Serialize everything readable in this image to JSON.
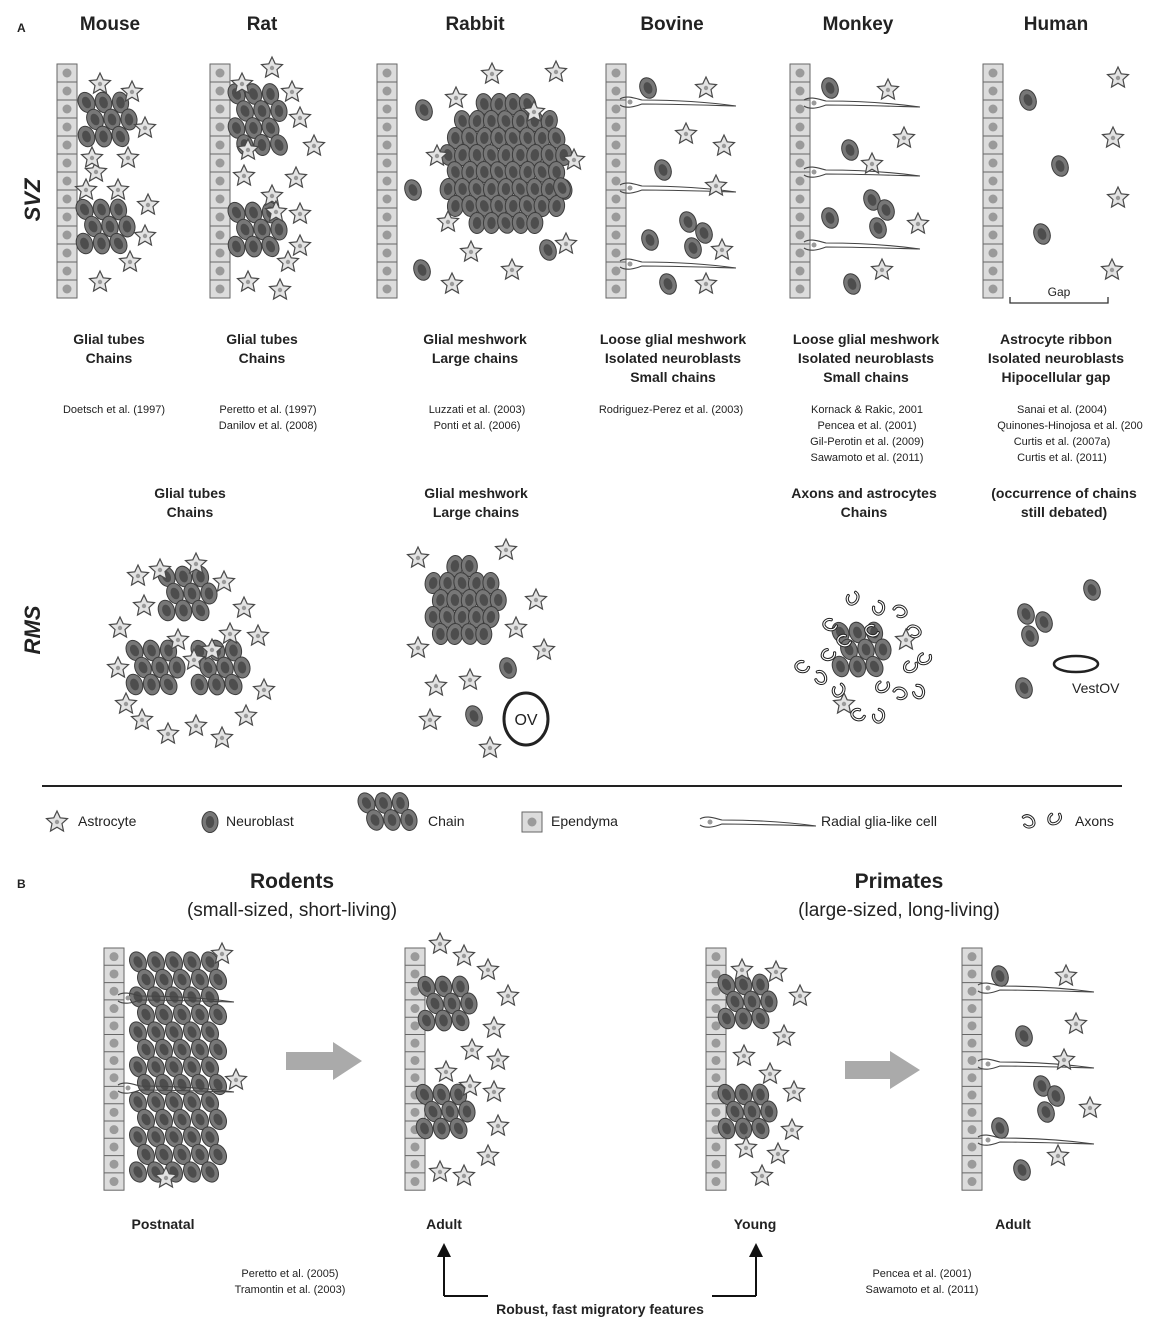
{
  "panel_a": {
    "letter": "A",
    "svz_label": "SVZ",
    "rms_label": "RMS",
    "species": [
      {
        "name": "Mouse",
        "svz_features": [
          "Glial tubes",
          "Chains"
        ],
        "svz_refs": [
          "Doetsch et al. (1997)"
        ]
      },
      {
        "name": "Rat",
        "svz_features": [
          "Glial tubes",
          "Chains"
        ],
        "svz_refs": [
          "Peretto et al. (1997)",
          "Danilov et al. (2008)"
        ]
      },
      {
        "name": "Rabbit",
        "svz_features": [
          "Glial meshwork",
          "Large chains"
        ],
        "svz_refs": [
          "Luzzati et al. (2003)",
          "Ponti et al. (2006)"
        ]
      },
      {
        "name": "Bovine",
        "svz_features": [
          "Loose glial meshwork",
          "Isolated neuroblasts",
          "Small chains"
        ],
        "svz_refs": [
          "Rodriguez-Perez et al. (2003)"
        ]
      },
      {
        "name": "Monkey",
        "svz_features": [
          "Loose glial meshwork",
          "Isolated neuroblasts",
          "Small chains"
        ],
        "svz_refs": [
          "Kornack & Rakic, 2001",
          "Pencea et al. (2001)",
          "Gil-Perotin et al. (2009)",
          "Sawamoto et al. (2011)"
        ]
      },
      {
        "name": "Human",
        "svz_features": [
          "Astrocyte ribbon",
          "Isolated neuroblasts",
          "Hipocellular gap"
        ],
        "svz_refs": [
          "Sanai et al. (2004)",
          "Quinones-Hinojosa et al. (200",
          "Curtis et al. (2007a)",
          "Curtis et al. (2011)"
        ]
      }
    ],
    "gap_label": "Gap",
    "rms": [
      {
        "lines": [
          "Glial tubes",
          "Chains"
        ]
      },
      {
        "lines": [
          "Glial meshwork",
          "Large chains"
        ]
      },
      {
        "lines": [
          "Axons and astrocytes",
          "Chains"
        ]
      },
      {
        "lines": [
          "(occurrence of chains",
          "still debated)"
        ]
      }
    ],
    "ov_label": "OV",
    "vestov_label": "VestOV"
  },
  "legend": {
    "astrocyte": "Astrocyte",
    "neuroblast": "Neuroblast",
    "chain": "Chain",
    "ependyma": "Ependyma",
    "radial_glia": "Radial glia-like cell",
    "axons": "Axons"
  },
  "panel_b": {
    "letter": "B",
    "rodents_title": "Rodents",
    "rodents_sub": "(small-sized, short-living)",
    "primates_title": "Primates",
    "primates_sub": "(large-sized, long-living)",
    "stages": [
      "Postnatal",
      "Adult",
      "Young",
      "Adult"
    ],
    "rodent_refs": [
      "Peretto et al. (2005)",
      "Tramontin et al. (2003)"
    ],
    "primate_refs": [
      "Pencea et al. (2001)",
      "Sawamoto et al. (2011)"
    ],
    "bottom_label": "Robust, fast migratory features"
  },
  "colors": {
    "neuroblast": "#777777",
    "neuroblast_core": "#4d4d4d",
    "astrocyte": "#e3e3e3",
    "ependyma": "#dcdcdc",
    "ink": "#222222"
  }
}
